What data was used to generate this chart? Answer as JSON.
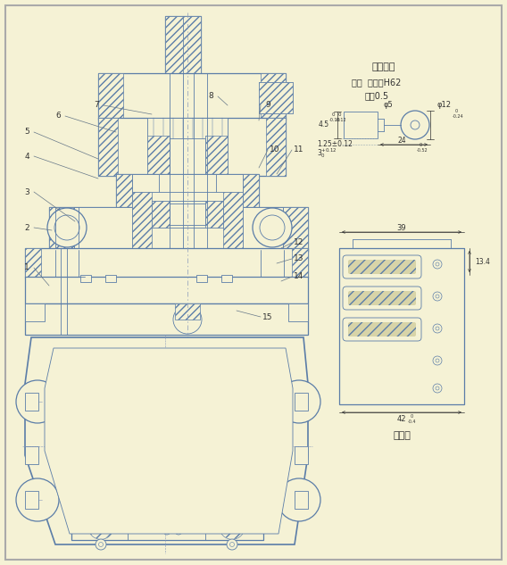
{
  "bg_color": "#f5f2d5",
  "lc": "#5b7da8",
  "lc_dark": "#4a6a94",
  "text_color": "#333333",
  "hatch_fc": "#f5f2d5",
  "title_gongzuo": "工件简图",
  "material1": "材料  黄銅带H62",
  "material2": "料厚0.5",
  "paiyangtu": "排样图",
  "labels_left": [
    "1",
    "2",
    "3",
    "4",
    "5"
  ],
  "labels_top": [
    "6",
    "7",
    "8",
    "9"
  ],
  "labels_right": [
    "10",
    "11",
    "12",
    "13",
    "14",
    "15"
  ]
}
